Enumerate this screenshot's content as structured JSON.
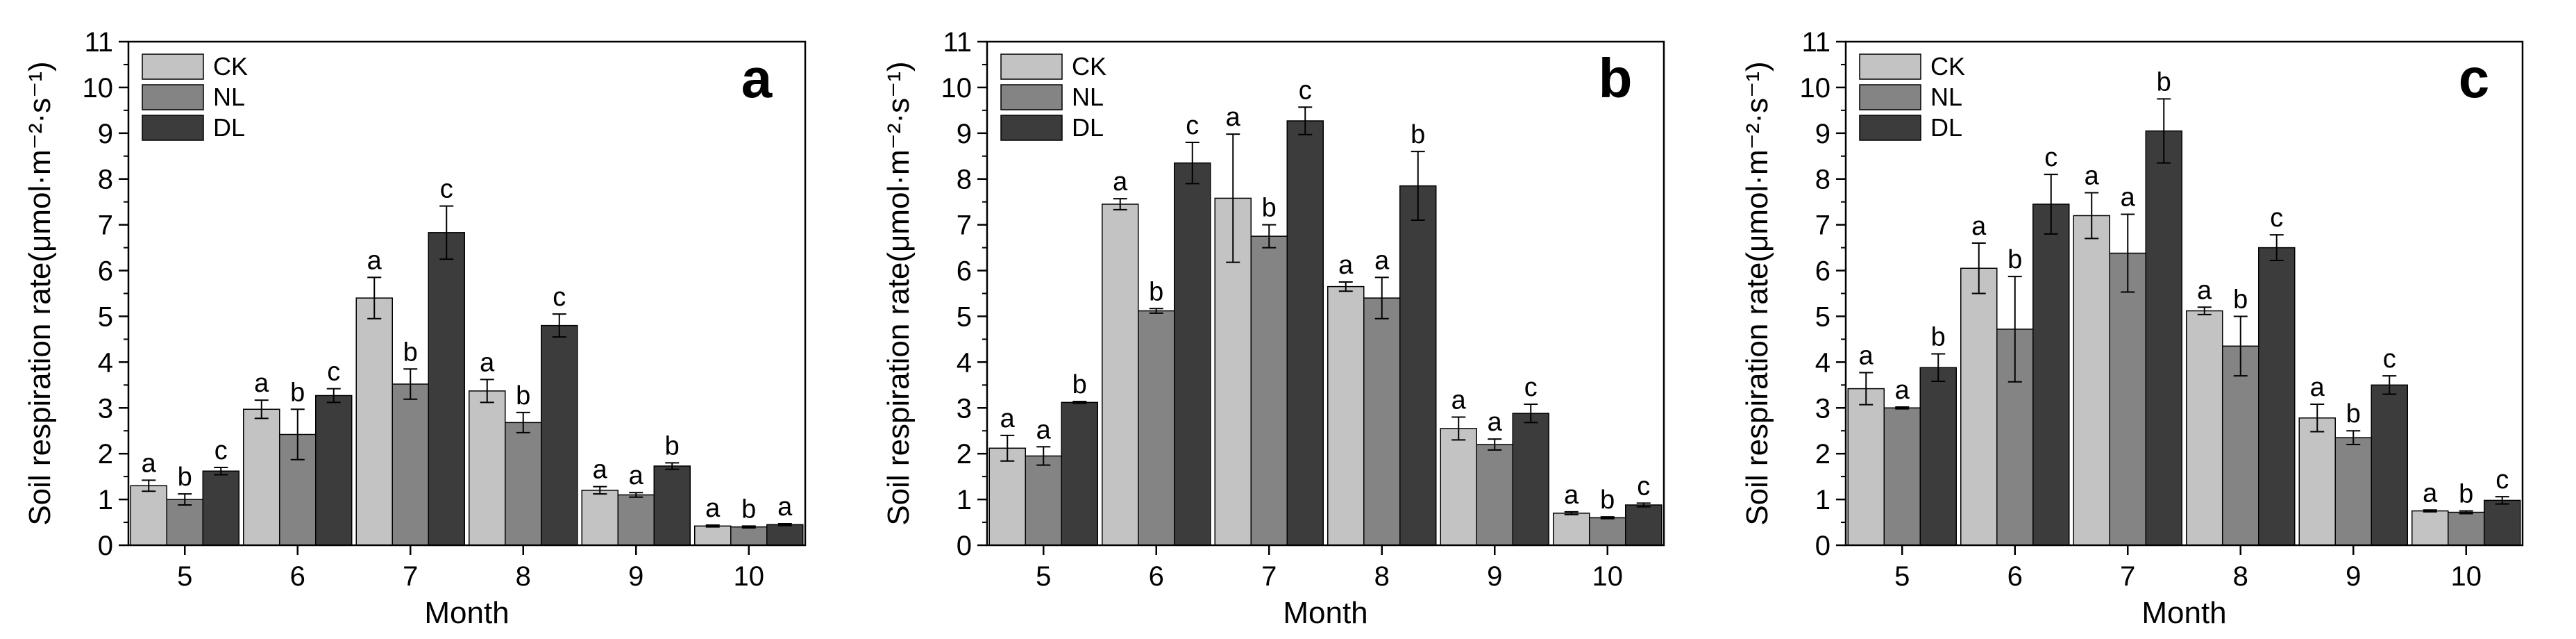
{
  "chart_data": [
    {
      "type": "bar",
      "panel_label": "a",
      "categories": [
        "5",
        "6",
        "7",
        "8",
        "9",
        "10"
      ],
      "series": [
        {
          "name": "CK",
          "color": "#c3c3c3",
          "values": [
            1.3,
            2.97,
            5.4,
            3.37,
            1.2,
            0.42
          ],
          "errors": [
            0.12,
            0.2,
            0.45,
            0.25,
            0.08,
            0.02
          ],
          "letters": [
            "a",
            "a",
            "a",
            "a",
            "a",
            "a"
          ]
        },
        {
          "name": "NL",
          "color": "#848484",
          "values": [
            1.0,
            2.42,
            3.52,
            2.68,
            1.1,
            0.4
          ],
          "errors": [
            0.12,
            0.55,
            0.33,
            0.22,
            0.05,
            0.02
          ],
          "letters": [
            "b",
            "b",
            "b",
            "b",
            "a",
            "b"
          ]
        },
        {
          "name": "DL",
          "color": "#3c3c3c",
          "values": [
            1.62,
            3.27,
            6.83,
            4.8,
            1.73,
            0.45
          ],
          "errors": [
            0.08,
            0.15,
            0.58,
            0.25,
            0.07,
            0.02
          ],
          "letters": [
            "c",
            "c",
            "c",
            "c",
            "b",
            "a"
          ]
        }
      ],
      "xlabel": "Month",
      "ylabel": "Soil respiration rate(μmol·m⁻²·s⁻¹)",
      "ylim": [
        0,
        11
      ],
      "yticks": [
        "0",
        "1",
        "2",
        "3",
        "4",
        "5",
        "6",
        "7",
        "8",
        "9",
        "10",
        "11"
      ],
      "legend_position": "top-left"
    },
    {
      "type": "bar",
      "panel_label": "b",
      "categories": [
        "5",
        "6",
        "7",
        "8",
        "9",
        "10"
      ],
      "series": [
        {
          "name": "CK",
          "color": "#c3c3c3",
          "values": [
            2.12,
            7.45,
            7.58,
            5.65,
            2.55,
            0.7
          ],
          "errors": [
            0.28,
            0.12,
            1.4,
            0.1,
            0.25,
            0.03
          ],
          "letters": [
            "a",
            "a",
            "a",
            "a",
            "a",
            "a"
          ]
        },
        {
          "name": "NL",
          "color": "#848484",
          "values": [
            1.95,
            5.12,
            6.75,
            5.4,
            2.2,
            0.6
          ],
          "errors": [
            0.2,
            0.05,
            0.25,
            0.45,
            0.12,
            0.02
          ],
          "letters": [
            "a",
            "b",
            "b",
            "a",
            "a",
            "b"
          ]
        },
        {
          "name": "DL",
          "color": "#3c3c3c",
          "values": [
            3.12,
            8.35,
            9.27,
            7.85,
            2.88,
            0.88
          ],
          "errors": [
            0.02,
            0.45,
            0.3,
            0.75,
            0.2,
            0.04
          ],
          "letters": [
            "b",
            "c",
            "c",
            "b",
            "c",
            "c"
          ]
        }
      ],
      "xlabel": "Month",
      "ylabel": "Soil respiration rate(μmol·m⁻²·s⁻¹)",
      "ylim": [
        0,
        11
      ],
      "yticks": [
        "0",
        "1",
        "2",
        "3",
        "4",
        "5",
        "6",
        "7",
        "8",
        "9",
        "10",
        "11"
      ],
      "legend_position": "top-left"
    },
    {
      "type": "bar",
      "panel_label": "c",
      "categories": [
        "5",
        "6",
        "7",
        "8",
        "9",
        "10"
      ],
      "series": [
        {
          "name": "CK",
          "color": "#c3c3c3",
          "values": [
            3.42,
            6.05,
            7.2,
            5.12,
            2.78,
            0.75
          ],
          "errors": [
            0.35,
            0.55,
            0.5,
            0.08,
            0.3,
            0.02
          ],
          "letters": [
            "a",
            "a",
            "a",
            "a",
            "a",
            "a"
          ]
        },
        {
          "name": "NL",
          "color": "#848484",
          "values": [
            3.0,
            4.72,
            6.38,
            4.35,
            2.35,
            0.72
          ],
          "errors": [
            0.02,
            1.15,
            0.85,
            0.65,
            0.15,
            0.03
          ],
          "letters": [
            "a",
            "b",
            "a",
            "b",
            "b",
            "b"
          ]
        },
        {
          "name": "DL",
          "color": "#3c3c3c",
          "values": [
            3.88,
            7.45,
            9.05,
            6.5,
            3.5,
            0.98
          ],
          "errors": [
            0.3,
            0.65,
            0.7,
            0.28,
            0.2,
            0.08
          ],
          "letters": [
            "b",
            "c",
            "b",
            "c",
            "c",
            "c"
          ]
        }
      ],
      "xlabel": "Month",
      "ylabel": "Soil respiration rate(μmol·m⁻²·s⁻¹)",
      "ylim": [
        0,
        11
      ],
      "yticks": [
        "0",
        "1",
        "2",
        "3",
        "4",
        "5",
        "6",
        "7",
        "8",
        "9",
        "10",
        "11"
      ],
      "legend_position": "top-left"
    }
  ]
}
